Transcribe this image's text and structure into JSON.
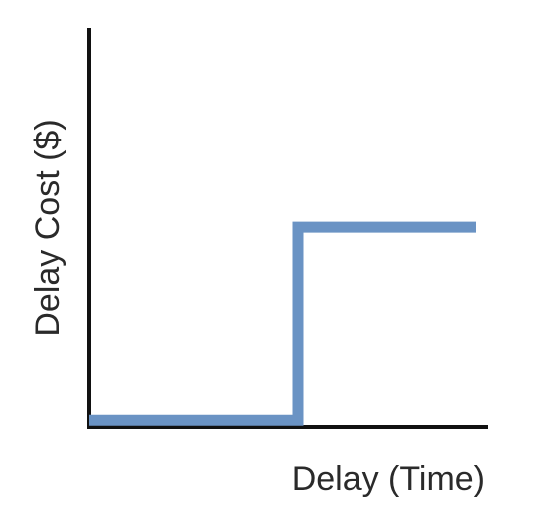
{
  "chart_data": {
    "type": "line",
    "title": "",
    "xlabel": "Delay (Time)",
    "ylabel": "Delay Cost ($)",
    "xlim": [
      0,
      1
    ],
    "ylim": [
      0,
      1
    ],
    "grid": false,
    "legend": "none",
    "series": [
      {
        "x": [
          0,
          0.54,
          0.54,
          1
        ],
        "y": [
          0.03,
          0.03,
          0.63,
          0.63
        ],
        "color": "#6a93c4"
      }
    ],
    "colors": {
      "axis": "#111111",
      "line": "#6a93c4",
      "text": "#2a2a2a"
    }
  }
}
